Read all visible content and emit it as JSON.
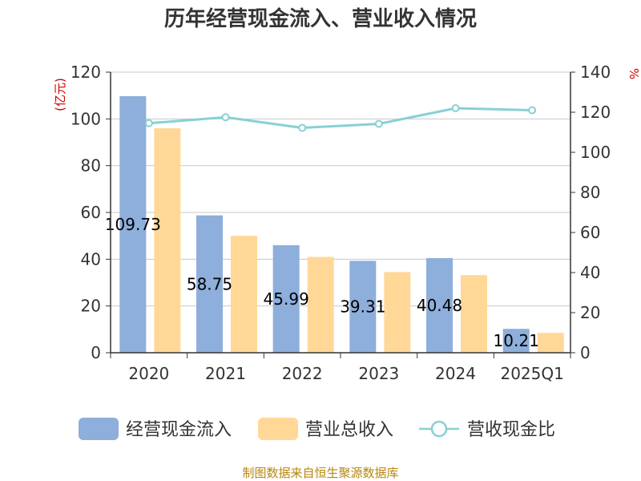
{
  "chart_data": {
    "type": "bar",
    "title": "历年经营现金流入、营业收入情况",
    "left_axis_unit": "(亿元)",
    "right_axis_unit": "%",
    "categories": [
      "2020",
      "2021",
      "2022",
      "2023",
      "2024",
      "2025Q1"
    ],
    "series": [
      {
        "name": "经营现金流入",
        "type": "bar",
        "axis": "left",
        "color": "#8eaedb",
        "values": [
          109.73,
          58.75,
          45.99,
          39.31,
          40.48,
          10.21
        ],
        "labels": [
          "109.73",
          "58.75",
          "45.99",
          "39.31",
          "40.48",
          "10.21"
        ]
      },
      {
        "name": "营业总收入",
        "type": "bar",
        "axis": "left",
        "color": "#ffd898",
        "values": [
          96.0,
          50.0,
          41.0,
          34.5,
          33.2,
          8.5
        ]
      },
      {
        "name": "营收现金比",
        "type": "line",
        "axis": "right",
        "color": "#88d0d4",
        "values": [
          114.5,
          117.5,
          112.2,
          114.2,
          122.0,
          121.0
        ]
      }
    ],
    "left_axis": {
      "min": 0,
      "max": 120,
      "ticks": [
        "0",
        "20",
        "40",
        "60",
        "80",
        "100",
        "120"
      ]
    },
    "right_axis": {
      "min": 0,
      "max": 140,
      "ticks": [
        "0",
        "20",
        "40",
        "60",
        "80",
        "100",
        "120",
        "140"
      ]
    },
    "grid": true,
    "legend_position": "bottom"
  },
  "source": "制图数据来自恒生聚源数据库"
}
